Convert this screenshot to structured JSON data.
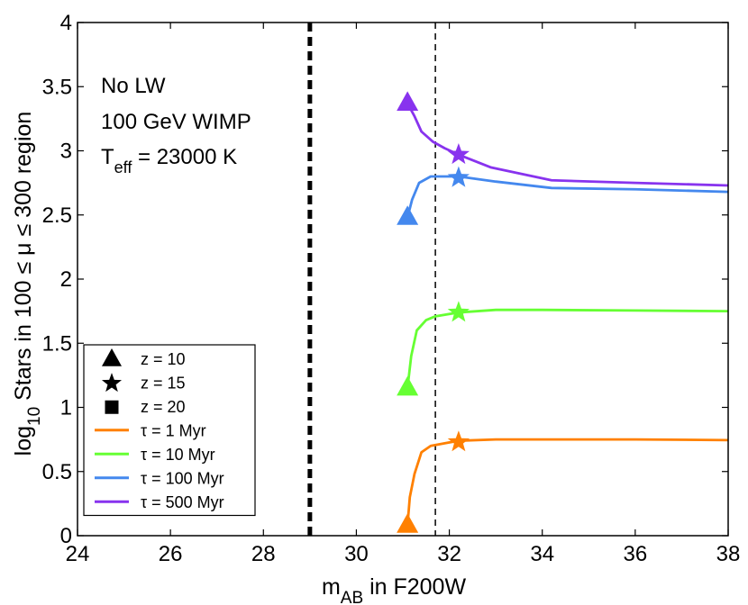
{
  "chart_data": {
    "type": "line",
    "xlabel": {
      "main": "m",
      "sub": "AB",
      "rest": " in F200W"
    },
    "ylabel": {
      "pre": "log",
      "sub": "10",
      "rest": " Stars in 100 ≤ μ ≤ 300 region"
    },
    "xlim": [
      24,
      38
    ],
    "ylim": [
      0,
      4
    ],
    "xticks": [
      24,
      26,
      28,
      30,
      32,
      34,
      36,
      38
    ],
    "yticks": [
      0,
      0.5,
      1,
      1.5,
      2,
      2.5,
      3,
      3.5,
      4
    ],
    "ytick_labels": [
      "0",
      "0.5",
      "1",
      "1.5",
      "2",
      "2.5",
      "3",
      "3.5",
      "4"
    ],
    "grid": false,
    "annotations": {
      "line1": "No LW",
      "line2": "100 GeV WIMP",
      "teff": {
        "main": "T",
        "sub": "eff",
        "rest": " = 23000 K"
      }
    },
    "vlines": [
      {
        "x": 29.0,
        "style": "thick-dashed"
      },
      {
        "x": 31.7,
        "style": "thin-dashed"
      }
    ],
    "series": [
      {
        "name": "τ = 1 Myr",
        "color": "#ff8000",
        "x": [
          31.1,
          31.15,
          31.25,
          31.4,
          31.6,
          31.9,
          32.2,
          33.0,
          34.0,
          36.0,
          38.0
        ],
        "y": [
          0.08,
          0.3,
          0.48,
          0.65,
          0.7,
          0.72,
          0.74,
          0.75,
          0.75,
          0.75,
          0.745
        ],
        "markers": [
          {
            "shape": "triangle",
            "x": 31.1,
            "y": 0.08
          },
          {
            "shape": "star",
            "x": 32.2,
            "y": 0.73
          }
        ]
      },
      {
        "name": "τ = 10 Myr",
        "color": "#66ff33",
        "x": [
          31.1,
          31.18,
          31.3,
          31.5,
          31.7,
          32.2,
          33.0,
          34.0,
          36.0,
          38.0
        ],
        "y": [
          1.15,
          1.4,
          1.6,
          1.68,
          1.71,
          1.74,
          1.76,
          1.76,
          1.755,
          1.75
        ],
        "markers": [
          {
            "shape": "triangle",
            "x": 31.1,
            "y": 1.15
          },
          {
            "shape": "star",
            "x": 32.2,
            "y": 1.74
          }
        ]
      },
      {
        "name": "τ = 100 Myr",
        "color": "#4488ee",
        "x": [
          31.1,
          31.2,
          31.35,
          31.6,
          31.8,
          32.2,
          33.0,
          34.2,
          36.0,
          38.0
        ],
        "y": [
          2.48,
          2.62,
          2.75,
          2.8,
          2.8,
          2.8,
          2.76,
          2.71,
          2.7,
          2.68
        ],
        "markers": [
          {
            "shape": "triangle",
            "x": 31.1,
            "y": 2.48
          },
          {
            "shape": "star",
            "x": 32.2,
            "y": 2.79
          }
        ]
      },
      {
        "name": "τ = 500 Myr",
        "color": "#8833ee",
        "x": [
          31.1,
          31.25,
          31.4,
          31.65,
          31.9,
          32.2,
          32.9,
          34.2,
          36.0,
          38.0
        ],
        "y": [
          3.37,
          3.27,
          3.15,
          3.07,
          3.02,
          2.97,
          2.87,
          2.77,
          2.75,
          2.73
        ],
        "markers": [
          {
            "shape": "triangle",
            "x": 31.1,
            "y": 3.37
          },
          {
            "shape": "star",
            "x": 32.2,
            "y": 2.97
          }
        ]
      }
    ],
    "legend": {
      "position": "lower-left",
      "entries": [
        {
          "type": "marker",
          "shape": "triangle",
          "label": "z = 10"
        },
        {
          "type": "marker",
          "shape": "star",
          "label": "z = 15"
        },
        {
          "type": "marker",
          "shape": "square",
          "label": "z = 20"
        },
        {
          "type": "line",
          "color": "#ff8000",
          "label": "τ = 1 Myr"
        },
        {
          "type": "line",
          "color": "#66ff33",
          "label": "τ = 10 Myr"
        },
        {
          "type": "line",
          "color": "#4488ee",
          "label": "τ = 100 Myr"
        },
        {
          "type": "line",
          "color": "#8833ee",
          "label": "τ = 500 Myr"
        }
      ]
    }
  }
}
